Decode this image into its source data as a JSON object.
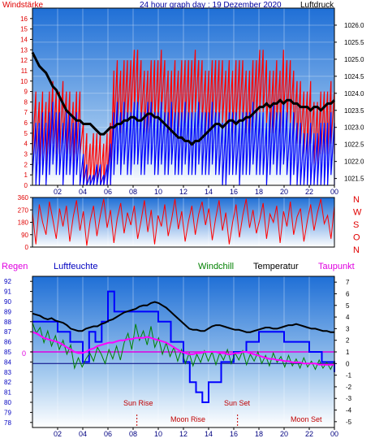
{
  "chart_data": [
    {
      "type": "line",
      "title": "24 hour graph day : 19 Dezember 2020",
      "left_axis_label": "Windstärke",
      "right_axis_label": "Luftdruck",
      "x_ticks": [
        "02",
        "04",
        "06",
        "08",
        "10",
        "12",
        "14",
        "16",
        "18",
        "20",
        "22",
        "00"
      ],
      "y_left_ticks": [
        0,
        1,
        2,
        3,
        4,
        5,
        6,
        7,
        8,
        9,
        10,
        11,
        12,
        13,
        14,
        15,
        16
      ],
      "y_left_range": [
        0,
        17
      ],
      "y_right_ticks": [
        1021.5,
        1022,
        1022.5,
        1023,
        1023.5,
        1024,
        1024.5,
        1025,
        1025.5,
        1026
      ],
      "y_right_range": [
        1021.3,
        1026.5
      ],
      "series": [
        {
          "key": "gust",
          "color": "#ff0000",
          "values": [
            9,
            9,
            8,
            9,
            8,
            9,
            10,
            9,
            9,
            10,
            9,
            9,
            8,
            9,
            9,
            6,
            5,
            4,
            5,
            5,
            5,
            4,
            5,
            6,
            11,
            12,
            11,
            12,
            12,
            12,
            13,
            13,
            12,
            11,
            11,
            12,
            12,
            12,
            13,
            12,
            11,
            11,
            12,
            11,
            12,
            12,
            12,
            12,
            13,
            12,
            12,
            11,
            11,
            12,
            12,
            12,
            12,
            11,
            12,
            11,
            12,
            12,
            12,
            11,
            11,
            12,
            12,
            13,
            13,
            12,
            11,
            11,
            12,
            11,
            13,
            12,
            12,
            11,
            10,
            10,
            9,
            9,
            10,
            8,
            8,
            9,
            9,
            9,
            10,
            9
          ]
        },
        {
          "key": "wind",
          "color": "#0000ff",
          "values": [
            7,
            6,
            6,
            7,
            6,
            7,
            8,
            7,
            7,
            6,
            7,
            7,
            6,
            7,
            6,
            3,
            2,
            1,
            1,
            2,
            2,
            1,
            2,
            4,
            7,
            8,
            7,
            8,
            7,
            7,
            8,
            8,
            7,
            7,
            8,
            8,
            7,
            7,
            8,
            7,
            7,
            8,
            7,
            7,
            7,
            8,
            7,
            7,
            7,
            8,
            7,
            7,
            7,
            8,
            7,
            7,
            6,
            6,
            7,
            7,
            7,
            6,
            7,
            7,
            7,
            8,
            7,
            7,
            7,
            6,
            7,
            8,
            7,
            7,
            8,
            7,
            6,
            7,
            6,
            6,
            5,
            5,
            6,
            5,
            5,
            6,
            6,
            6,
            7,
            6
          ]
        },
        {
          "key": "pressure",
          "color": "#000000",
          "values": [
            1025.2,
            1025.0,
            1024.8,
            1024.7,
            1024.6,
            1024.4,
            1024.2,
            1024.1,
            1023.9,
            1023.7,
            1023.5,
            1023.4,
            1023.3,
            1023.2,
            1023.2,
            1023.1,
            1023.1,
            1023.1,
            1023.0,
            1022.9,
            1022.8,
            1022.8,
            1022.9,
            1023.0,
            1023.0,
            1023.1,
            1023.1,
            1023.2,
            1023.2,
            1023.3,
            1023.3,
            1023.2,
            1023.2,
            1023.3,
            1023.4,
            1023.4,
            1023.3,
            1023.3,
            1023.2,
            1023.1,
            1023.0,
            1022.9,
            1022.8,
            1022.7,
            1022.7,
            1022.6,
            1022.6,
            1022.5,
            1022.6,
            1022.6,
            1022.7,
            1022.8,
            1022.9,
            1023.0,
            1023.1,
            1023.1,
            1023.0,
            1023.1,
            1023.2,
            1023.2,
            1023.1,
            1023.2,
            1023.2,
            1023.3,
            1023.3,
            1023.4,
            1023.5,
            1023.6,
            1023.6,
            1023.7,
            1023.6,
            1023.7,
            1023.7,
            1023.8,
            1023.7,
            1023.8,
            1023.8,
            1023.7,
            1023.7,
            1023.6,
            1023.6,
            1023.6,
            1023.5,
            1023.6,
            1023.6,
            1023.5,
            1023.6,
            1023.7,
            1023.7,
            1023.8
          ]
        }
      ]
    },
    {
      "type": "line",
      "title": "",
      "y_left_ticks": [
        0,
        90,
        180,
        270,
        360
      ],
      "y_left_range": [
        0,
        360
      ],
      "y_right_labels": [
        "N",
        "W",
        "S",
        "O",
        "N"
      ],
      "series": [
        {
          "key": "direction",
          "color": "#ff0000",
          "values": [
            250,
            20,
            310,
            180,
            90,
            330,
            200,
            60,
            280,
            150,
            300,
            40,
            220,
            340,
            120,
            260,
            10,
            190,
            300,
            80,
            230,
            350,
            140,
            270,
            30,
            210,
            320,
            100,
            250,
            160,
            300,
            60,
            190,
            340,
            110,
            270,
            20,
            230,
            150,
            310,
            80,
            200,
            350,
            130,
            260,
            40,
            190,
            300,
            90,
            240,
            330,
            160,
            280,
            50,
            210,
            340,
            120,
            250,
            20,
            180,
            310,
            70,
            230,
            350,
            140,
            270,
            100,
            200,
            320,
            60,
            240,
            180,
            300,
            30,
            260,
            150,
            330,
            90,
            220,
            280,
            40,
            190,
            310,
            120,
            250,
            350,
            170,
            230,
            60,
            300
          ]
        }
      ]
    },
    {
      "type": "line",
      "labels": {
        "rain": "Regen",
        "humidity": "Luftfeuchte",
        "windchill": "Windchill",
        "temperature": "Temperatur",
        "dewpoint": "Taupunkt",
        "sun_rise": "Sun Rise",
        "sun_set": "Sun Set",
        "moon_rise": "Moon Rise",
        "moon_set": "Moon Set",
        "rain_value": "0"
      },
      "events": {
        "sun_rise": 8.3,
        "sun_set": 16.3
      },
      "y_left_ticks": [
        78,
        79,
        80,
        81,
        82,
        83,
        84,
        85,
        86,
        87,
        88,
        89,
        90,
        91,
        92
      ],
      "y_left_range": [
        77.5,
        92.5
      ],
      "y_right_ticks": [
        -5,
        -4,
        -3,
        -2,
        -1,
        0,
        1,
        2,
        3,
        4,
        5,
        6,
        7
      ],
      "y_right_range": [
        -5.5,
        7.5
      ],
      "humidity_steps": [
        [
          0,
          88
        ],
        [
          1,
          88
        ],
        [
          2,
          87
        ],
        [
          3,
          86
        ],
        [
          4,
          84
        ],
        [
          4.5,
          87
        ],
        [
          5,
          86
        ],
        [
          5.5,
          88
        ],
        [
          6,
          91
        ],
        [
          6.5,
          89
        ],
        [
          8,
          89
        ],
        [
          9,
          89
        ],
        [
          10,
          88
        ],
        [
          11,
          86
        ],
        [
          12,
          84
        ],
        [
          12.5,
          82
        ],
        [
          13,
          81
        ],
        [
          13.5,
          80
        ],
        [
          14,
          82
        ],
        [
          15,
          84
        ],
        [
          16,
          85
        ],
        [
          17,
          86
        ],
        [
          18,
          87
        ],
        [
          19,
          87
        ],
        [
          20,
          86
        ],
        [
          21,
          86
        ],
        [
          22,
          85
        ],
        [
          23,
          84
        ],
        [
          24,
          83
        ]
      ],
      "series": [
        {
          "key": "temperature",
          "color": "#000000",
          "values": [
            4.3,
            4.2,
            4.1,
            3.9,
            3.8,
            3.9,
            3.7,
            3.6,
            3.5,
            3.3,
            3.0,
            2.9,
            2.8,
            2.8,
            3.0,
            3.1,
            3.2,
            3.2,
            3.4,
            3.5,
            3.7,
            3.8,
            4.0,
            4.2,
            4.4,
            4.5,
            4.6,
            4.7,
            4.9,
            5.0,
            5.0,
            5.2,
            5.3,
            5.2,
            5.0,
            4.8,
            4.5,
            4.2,
            3.9,
            3.6,
            3.3,
            3.0,
            2.9,
            2.9,
            2.8,
            2.8,
            3.0,
            3.2,
            3.3,
            3.3,
            3.2,
            3.1,
            3.0,
            2.9,
            2.9,
            2.8,
            2.7,
            2.7,
            2.8,
            2.9,
            3.0,
            3.1,
            3.1,
            3.0,
            3.0,
            3.1,
            3.2,
            3.3,
            3.3,
            3.4,
            3.3,
            3.2,
            3.1,
            3.0,
            3.0,
            2.9,
            2.8,
            2.8,
            2.7,
            2.7
          ]
        },
        {
          "key": "dewpoint",
          "color": "#ff00ff",
          "values": [
            2.7,
            2.6,
            2.4,
            2.2,
            2.1,
            2.0,
            1.9,
            1.8,
            1.6,
            1.4,
            1.2,
            1.0,
            0.9,
            0.9,
            1.0,
            1.2,
            1.3,
            1.5,
            1.6,
            1.7,
            1.8,
            1.8,
            1.9,
            2.0,
            2.0,
            2.1,
            2.1,
            2.2,
            2.2,
            2.2,
            2.3,
            2.2,
            2.1,
            2.0,
            1.9,
            1.8,
            1.6,
            1.4,
            1.2,
            1.0,
            0.9,
            0.8,
            0.8,
            0.9,
            0.9,
            1.0,
            1.0,
            1.0,
            1.0,
            0.9,
            0.9,
            0.8,
            0.8,
            0.9,
            0.9,
            1.0,
            1.0,
            0.9,
            0.8,
            0.7,
            0.6,
            0.5,
            0.4,
            0.4,
            0.3,
            0.3,
            0.2,
            0.2,
            0.1,
            0.1,
            0.1,
            0.0,
            0.0,
            0.0,
            0.0,
            -0.1,
            -0.1,
            -0.1,
            -0.1,
            -0.1
          ]
        },
        {
          "key": "windchill",
          "color": "#008000",
          "values": [
            3.5,
            2.6,
            3.1,
            1.8,
            2.8,
            1.5,
            2.4,
            1.2,
            2.0,
            0.8,
            1.6,
            -0.4,
            0.5,
            -0.3,
            0.4,
            0.9,
            0.2,
            1.4,
            0.8,
            0.0,
            1.2,
            0.4,
            1.5,
            0.3,
            1.8,
            2.6,
            1.2,
            3.4,
            2.0,
            2.8,
            1.6,
            3.2,
            1.4,
            2.2,
            0.8,
            1.8,
            0.6,
            1.4,
            0.2,
            1.2,
            0.0,
            0.9,
            -0.2,
            0.8,
            0.1,
            1.1,
            0.2,
            1.0,
            -0.1,
            0.9,
            0.3,
            1.2,
            0.0,
            0.9,
            0.3,
            1.1,
            -0.1,
            0.8,
            0.2,
            1.0,
            0.0,
            0.7,
            -0.2,
            0.9,
            0.1,
            0.6,
            -0.3,
            0.7,
            -0.2,
            0.4,
            -0.4,
            0.5,
            -0.3,
            0.2,
            -0.5,
            0.3,
            -0.4,
            0.1,
            -0.5,
            0.2
          ]
        }
      ]
    }
  ]
}
